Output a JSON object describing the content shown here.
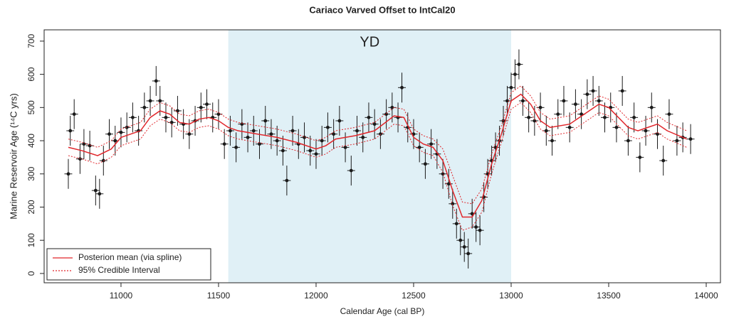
{
  "chart_data": {
    "type": "errorbar",
    "title": "Cariaco Varved Offset to IntCal20",
    "x_label": "Calendar Age (cal BP)",
    "y_label": "Marine Reservoir Age (¹⁴C yrs)",
    "xlim": [
      10606,
      14073
    ],
    "ylim": [
      -28,
      734
    ],
    "xticks": [
      11000,
      11500,
      12000,
      12500,
      13000,
      13500,
      14000
    ],
    "yticks": [
      0,
      100,
      200,
      300,
      400,
      500,
      600,
      700
    ],
    "legend": "bottom-left",
    "shade": {
      "xlim": [
        11550,
        13000
      ],
      "label": "YD",
      "color": "#e0f0f6"
    },
    "points": {
      "color": "#1a1a1a",
      "yerr": 45,
      "xerr": 20,
      "x": [
        10730,
        10740,
        10760,
        10790,
        10810,
        10840,
        10870,
        10890,
        10910,
        10940,
        10970,
        11000,
        11030,
        11060,
        11090,
        11120,
        11150,
        11180,
        11200,
        11230,
        11260,
        11290,
        11320,
        11350,
        11380,
        11410,
        11440,
        11470,
        11500,
        11530,
        11560,
        11590,
        11620,
        11650,
        11680,
        11710,
        11740,
        11770,
        11800,
        11830,
        11850,
        11880,
        11910,
        11940,
        11970,
        12000,
        12030,
        12060,
        12090,
        12120,
        12150,
        12180,
        12210,
        12240,
        12270,
        12300,
        12330,
        12360,
        12390,
        12420,
        12440,
        12470,
        12500,
        12530,
        12560,
        12590,
        12620,
        12650,
        12680,
        12700,
        12720,
        12740,
        12760,
        12780,
        12800,
        12820,
        12840,
        12860,
        12880,
        12900,
        12920,
        12940,
        12960,
        12980,
        13000,
        13020,
        13040,
        13060,
        13090,
        13120,
        13150,
        13180,
        13210,
        13240,
        13270,
        13300,
        13330,
        13360,
        13390,
        13420,
        13450,
        13480,
        13510,
        13540,
        13570,
        13600,
        13630,
        13660,
        13690,
        13720,
        13750,
        13780,
        13810,
        13850,
        13880,
        13920
      ],
      "y": [
        300,
        430,
        480,
        345,
        390,
        385,
        250,
        240,
        340,
        420,
        400,
        425,
        440,
        470,
        430,
        500,
        520,
        580,
        520,
        470,
        455,
        490,
        450,
        420,
        460,
        500,
        510,
        470,
        480,
        390,
        430,
        380,
        450,
        410,
        430,
        390,
        460,
        420,
        400,
        370,
        280,
        430,
        390,
        410,
        370,
        360,
        400,
        440,
        420,
        460,
        380,
        310,
        430,
        410,
        470,
        450,
        420,
        480,
        500,
        470,
        560,
        440,
        420,
        380,
        330,
        390,
        360,
        300,
        270,
        210,
        150,
        100,
        80,
        60,
        180,
        140,
        130,
        230,
        300,
        340,
        380,
        400,
        460,
        520,
        560,
        600,
        630,
        520,
        470,
        460,
        500,
        430,
        400,
        480,
        520,
        440,
        510,
        480,
        540,
        550,
        520,
        470,
        500,
        440,
        550,
        400,
        470,
        350,
        430,
        500,
        420,
        340,
        480,
        400,
        410,
        405
      ]
    },
    "series": [
      {
        "name": "Posterion mean (via spline)",
        "color": "#e0262b",
        "dash": false,
        "x": [
          10730,
          10800,
          10880,
          10950,
          11000,
          11050,
          11100,
          11150,
          11200,
          11250,
          11300,
          11350,
          11400,
          11450,
          11500,
          11550,
          11600,
          11700,
          11800,
          11900,
          12000,
          12050,
          12100,
          12200,
          12300,
          12400,
          12450,
          12500,
          12550,
          12600,
          12650,
          12700,
          12750,
          12800,
          12850,
          12900,
          12950,
          13000,
          13050,
          13100,
          13150,
          13200,
          13300,
          13400,
          13450,
          13500,
          13600,
          13650,
          13700,
          13750,
          13800,
          13900
        ],
        "values": [
          [
            380,
            370,
            355,
            375,
            410,
            420,
            430,
            470,
            490,
            480,
            455,
            450,
            465,
            470,
            460,
            440,
            430,
            420,
            410,
            395,
            375,
            385,
            405,
            415,
            430,
            475,
            470,
            410,
            390,
            380,
            340,
            250,
            170,
            170,
            220,
            330,
            420,
            520,
            540,
            510,
            460,
            440,
            450,
            490,
            510,
            500,
            440,
            430,
            440,
            450,
            430,
            405
          ]
        ]
      },
      {
        "name": "95% Credible Interval",
        "color": "#e0262b",
        "dash": true,
        "x": [
          10730,
          10800,
          10880,
          10950,
          11000,
          11050,
          11100,
          11150,
          11200,
          11250,
          11300,
          11350,
          11400,
          11450,
          11500,
          11550,
          11600,
          11700,
          11800,
          11900,
          12000,
          12050,
          12100,
          12200,
          12300,
          12400,
          12450,
          12500,
          12550,
          12600,
          12650,
          12700,
          12750,
          12800,
          12850,
          12900,
          12950,
          13000,
          13050,
          13100,
          13150,
          13200,
          13300,
          13400,
          13450,
          13500,
          13600,
          13650,
          13700,
          13750,
          13800,
          13900
        ],
        "values": [
          [
            405,
            395,
            380,
            400,
            435,
            445,
            455,
            495,
            515,
            505,
            480,
            475,
            490,
            495,
            485,
            465,
            455,
            445,
            435,
            420,
            400,
            410,
            430,
            440,
            455,
            500,
            495,
            435,
            415,
            405,
            375,
            295,
            215,
            210,
            255,
            360,
            445,
            545,
            565,
            535,
            485,
            465,
            475,
            515,
            535,
            525,
            465,
            455,
            465,
            475,
            455,
            430
          ],
          [
            355,
            345,
            330,
            350,
            385,
            395,
            405,
            445,
            465,
            455,
            430,
            425,
            440,
            445,
            435,
            415,
            405,
            395,
            385,
            370,
            350,
            360,
            380,
            390,
            405,
            450,
            445,
            385,
            365,
            355,
            305,
            205,
            130,
            140,
            185,
            300,
            395,
            495,
            515,
            485,
            435,
            415,
            425,
            465,
            485,
            475,
            415,
            405,
            415,
            425,
            405,
            380
          ]
        ]
      }
    ]
  }
}
